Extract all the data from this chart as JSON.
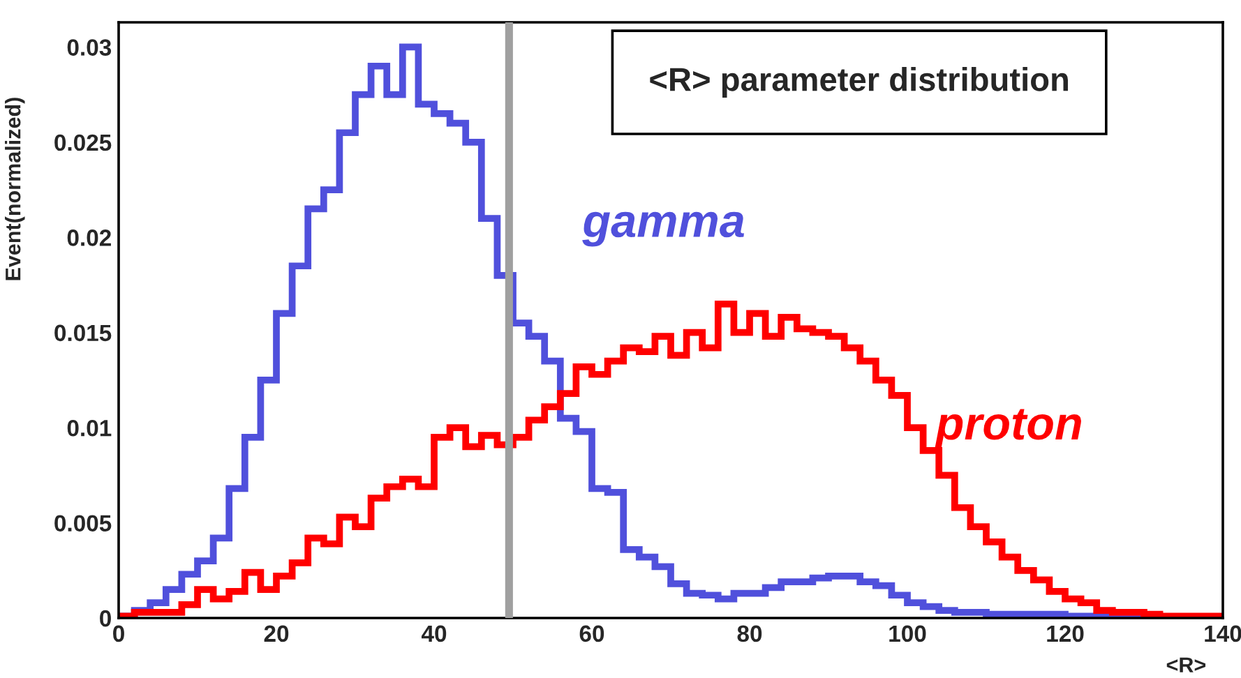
{
  "chart_data": {
    "type": "histogram",
    "title": "<R> parameter distribution",
    "xlabel": "<R>",
    "ylabel": "Event(normalized)",
    "bins": [
      0,
      2,
      4,
      6,
      8,
      10,
      12,
      14,
      16,
      18,
      20,
      22,
      24,
      26,
      28,
      30,
      32,
      34,
      36,
      38,
      40,
      42,
      44,
      46,
      48,
      50,
      52,
      54,
      56,
      58,
      60,
      62,
      64,
      66,
      68,
      70,
      72,
      74,
      76,
      78,
      80,
      82,
      84,
      86,
      88,
      90,
      92,
      94,
      96,
      98,
      100,
      102,
      104,
      106,
      108,
      110,
      112,
      114,
      116,
      118,
      120,
      122,
      124,
      126,
      128,
      130,
      132,
      134,
      136,
      138,
      140
    ],
    "series": [
      {
        "name": "gamma",
        "color": "#5050dc",
        "values": [
          0.0001,
          0.0004,
          0.0008,
          0.0015,
          0.0023,
          0.003,
          0.0042,
          0.0068,
          0.0095,
          0.0125,
          0.016,
          0.0185,
          0.0215,
          0.0225,
          0.0255,
          0.0275,
          0.029,
          0.0275,
          0.03,
          0.027,
          0.0265,
          0.026,
          0.025,
          0.021,
          0.018,
          0.0155,
          0.0148,
          0.0135,
          0.0105,
          0.0098,
          0.0068,
          0.0066,
          0.0036,
          0.0032,
          0.0027,
          0.0018,
          0.0013,
          0.0012,
          0.001,
          0.0013,
          0.0013,
          0.0016,
          0.0019,
          0.0019,
          0.0021,
          0.0022,
          0.0022,
          0.0019,
          0.0017,
          0.0012,
          0.0008,
          0.0006,
          0.0004,
          0.0003,
          0.0003,
          0.0002,
          0.0002,
          0.0002,
          0.0002,
          0.0002,
          0.0001,
          0.0001,
          0.0001,
          0.0001,
          0,
          0,
          0,
          0,
          0,
          0
        ]
      },
      {
        "name": "proton",
        "color": "#ff0000",
        "values": [
          0.0001,
          0.0003,
          0.0003,
          0.0003,
          0.0007,
          0.0015,
          0.001,
          0.0014,
          0.0024,
          0.0015,
          0.0022,
          0.0029,
          0.0042,
          0.0039,
          0.0053,
          0.0048,
          0.0063,
          0.0069,
          0.0073,
          0.0069,
          0.0095,
          0.01,
          0.009,
          0.0096,
          0.0091,
          0.0095,
          0.0104,
          0.0111,
          0.0118,
          0.0132,
          0.0128,
          0.0135,
          0.0142,
          0.014,
          0.0148,
          0.0138,
          0.015,
          0.0142,
          0.0165,
          0.015,
          0.016,
          0.0148,
          0.0158,
          0.0152,
          0.015,
          0.0148,
          0.0142,
          0.0135,
          0.0125,
          0.0117,
          0.01,
          0.0088,
          0.0075,
          0.0058,
          0.0048,
          0.004,
          0.0032,
          0.0025,
          0.002,
          0.0014,
          0.001,
          0.0008,
          0.0004,
          0.0003,
          0.0003,
          0.0002,
          0.0001,
          0.0001,
          0.0001,
          0.0001
        ]
      }
    ],
    "xlim": [
      0,
      140
    ],
    "xticks": [
      0,
      20,
      40,
      60,
      80,
      100,
      120,
      140
    ],
    "ylim": [
      0,
      0.0313
    ],
    "yticks": [
      0,
      0.005,
      0.01,
      0.015,
      0.02,
      0.025,
      0.03
    ],
    "ref_lines": [
      {
        "axis": "x",
        "value": 49.5,
        "color": "#a0a0a0"
      }
    ],
    "grid": false,
    "legend": false
  }
}
